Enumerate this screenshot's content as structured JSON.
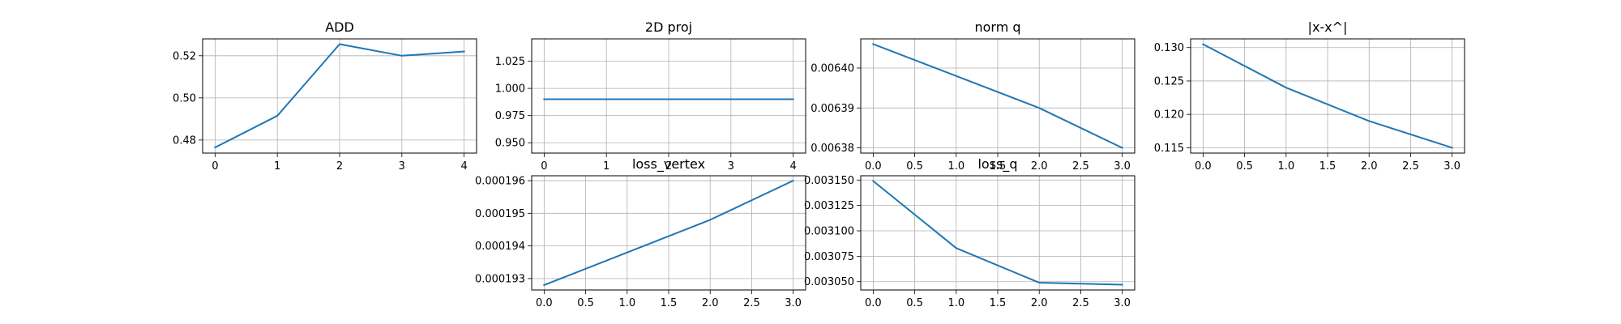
{
  "line_color": "#1f77b4",
  "chart_data": [
    {
      "type": "line",
      "title": "ADD",
      "x": [
        0,
        1,
        2,
        3,
        4
      ],
      "series": [
        {
          "values": [
            0.4765,
            0.4915,
            0.5255,
            0.52,
            0.522
          ]
        }
      ],
      "xlim": [
        -0.2,
        4.2
      ],
      "ylim": [
        0.4738,
        0.528
      ],
      "xticks": [
        "0",
        "1",
        "2",
        "3",
        "4"
      ],
      "yticks": [
        "0.48",
        "0.50",
        "0.52"
      ],
      "grid": true
    },
    {
      "type": "line",
      "title": "2D proj",
      "x": [
        0,
        1,
        2,
        3,
        4
      ],
      "series": [
        {
          "values": [
            0.99,
            0.99,
            0.99,
            0.99,
            0.99
          ]
        }
      ],
      "xlim": [
        -0.2,
        4.2
      ],
      "ylim": [
        0.9405,
        1.0455
      ],
      "xticks": [
        "0",
        "1",
        "2",
        "3",
        "4"
      ],
      "yticks": [
        "0.950",
        "0.975",
        "1.000",
        "1.025"
      ],
      "grid": true
    },
    {
      "type": "line",
      "title": "norm q",
      "x": [
        0,
        1,
        2,
        3
      ],
      "series": [
        {
          "values": [
            0.006406,
            0.006398,
            0.00639,
            0.00638
          ]
        }
      ],
      "xlim": [
        -0.15,
        3.15
      ],
      "ylim": [
        0.0063787,
        0.0064073
      ],
      "xticks": [
        "0.0",
        "0.5",
        "1.0",
        "1.5",
        "2.0",
        "2.5",
        "3.0"
      ],
      "yticks": [
        "0.00638",
        "0.00639",
        "0.00640"
      ],
      "grid": true
    },
    {
      "type": "line",
      "title": "|x-x^|",
      "x": [
        0,
        1,
        2,
        3
      ],
      "series": [
        {
          "values": [
            0.1305,
            0.124,
            0.119,
            0.115
          ]
        }
      ],
      "xlim": [
        -0.15,
        3.15
      ],
      "ylim": [
        0.1142,
        0.1313
      ],
      "xticks": [
        "0.0",
        "0.5",
        "1.0",
        "1.5",
        "2.0",
        "2.5",
        "3.0"
      ],
      "yticks": [
        "0.115",
        "0.120",
        "0.125",
        "0.130"
      ],
      "grid": true
    },
    {
      "type": "line",
      "title": "loss_vertex",
      "x": [
        0,
        1,
        2,
        3
      ],
      "series": [
        {
          "values": [
            0.0001928,
            0.0001938,
            0.0001948,
            0.000196
          ]
        }
      ],
      "xlim": [
        -0.15,
        3.15
      ],
      "ylim": [
        0.00019265,
        0.00019615
      ],
      "xticks": [
        "0.0",
        "0.5",
        "1.0",
        "1.5",
        "2.0",
        "2.5",
        "3.0"
      ],
      "yticks": [
        "0.000193",
        "0.000194",
        "0.000195",
        "0.000196"
      ],
      "grid": true
    },
    {
      "type": "line",
      "title": "loss_q",
      "x": [
        0,
        1,
        2,
        3
      ],
      "series": [
        {
          "values": [
            0.003149,
            0.003083,
            0.003049,
            0.003047
          ]
        }
      ],
      "xlim": [
        -0.15,
        3.15
      ],
      "ylim": [
        0.0030418,
        0.0031542
      ],
      "xticks": [
        "0.0",
        "0.5",
        "1.0",
        "1.5",
        "2.0",
        "2.5",
        "3.0"
      ],
      "yticks": [
        "0.003050",
        "0.003075",
        "0.003100",
        "0.003125",
        "0.003150"
      ],
      "grid": true
    }
  ]
}
